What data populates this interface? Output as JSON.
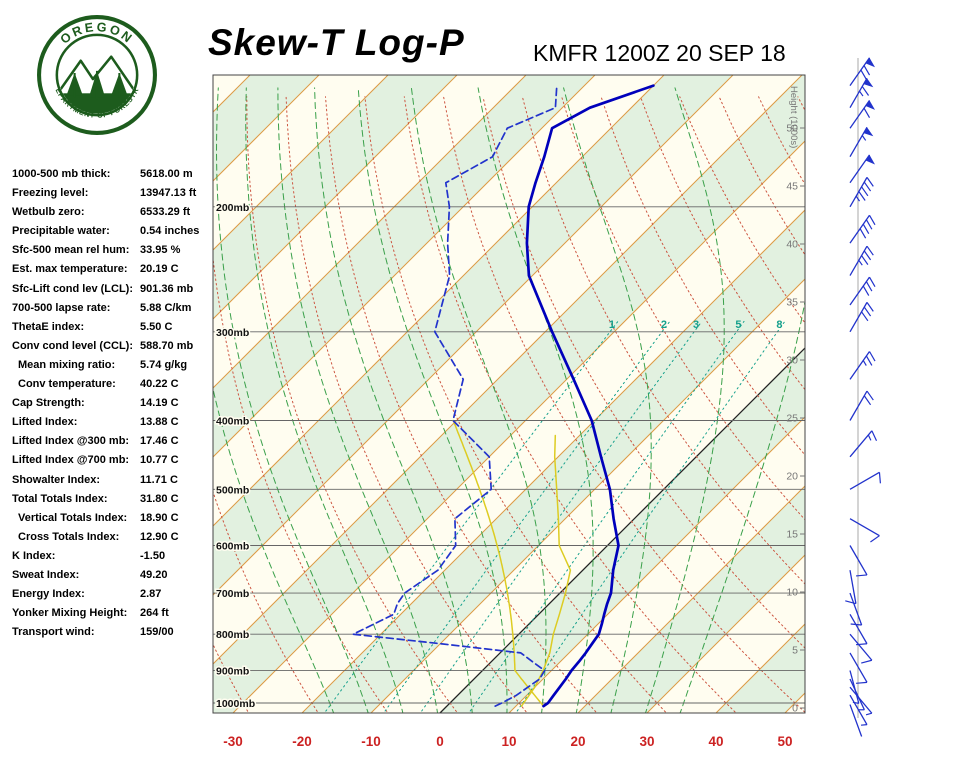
{
  "header": {
    "title": "Skew-T Log-P",
    "station": "KMFR 1200Z 20 SEP 18"
  },
  "logo": {
    "top_text": "OREGON",
    "bottom_text": "DEPARTMENT OF FORESTRY"
  },
  "indices": [
    {
      "label": "1000-500 mb thick:",
      "value": "5618.00 m"
    },
    {
      "label": "Freezing level:",
      "value": "13947.13 ft"
    },
    {
      "label": "Wetbulb zero:",
      "value": "6533.29 ft"
    },
    {
      "label": "Precipitable water:",
      "value": "0.54 inches"
    },
    {
      "label": "Sfc-500 mean rel hum:",
      "value": "33.95 %"
    },
    {
      "label": "Est. max temperature:",
      "value": "20.19 C"
    },
    {
      "label": "Sfc-Lift cond lev (LCL):",
      "value": "901.36 mb"
    },
    {
      "label": "700-500 lapse rate:",
      "value": "5.88 C/km"
    },
    {
      "label": "ThetaE index:",
      "value": "5.50 C"
    },
    {
      "label": "Conv cond level (CCL):",
      "value": "588.70 mb"
    },
    {
      "label": "Mean mixing ratio:",
      "value": "5.74 g/kg",
      "indent": true
    },
    {
      "label": "Conv temperature:",
      "value": "40.22 C",
      "indent": true
    },
    {
      "label": "Cap Strength:",
      "value": "14.19 C"
    },
    {
      "label": "Lifted Index:",
      "value": "13.88 C"
    },
    {
      "label": "Lifted Index @300 mb:",
      "value": "17.46 C"
    },
    {
      "label": "Lifted Index @700 mb:",
      "value": "10.77 C"
    },
    {
      "label": "Showalter Index:",
      "value": "11.71 C"
    },
    {
      "label": "Total Totals Index:",
      "value": "31.80 C"
    },
    {
      "label": "Vertical Totals Index:",
      "value": "18.90 C",
      "indent": true
    },
    {
      "label": "Cross Totals Index:",
      "value": "12.90 C",
      "indent": true
    },
    {
      "label": "K Index:",
      "value": "-1.50"
    },
    {
      "label": "Sweat Index:",
      "value": "49.20"
    },
    {
      "label": "Energy Index:",
      "value": "2.87"
    },
    {
      "label": "Yonker Mixing Height:",
      "value": "264 ft"
    },
    {
      "label": "Transport wind:",
      "value": "159/00"
    }
  ],
  "colors": {
    "band_green": "#e2f1e0",
    "band_cream": "#fffdf0",
    "isotherm": "#dd9a44",
    "zero_isotherm": "#222222",
    "isobar": "#666666",
    "dry_adiabat": "#cc5540",
    "moist_adiabat": "#3aa04a",
    "mixing_ratio": "#15a08c",
    "temperature_trace": "#0000bb",
    "dewpoint_trace": "#2233cc",
    "wetbulb_trace": "#ddcc22",
    "wind_barb": "#2233cc",
    "axis_red": "#cc2222",
    "height_label": "#777777",
    "logo_green": "#1d5c1d"
  },
  "chart_data": {
    "type": "line",
    "variant": "skew-t-log-p",
    "title": "Skew-T Log-P",
    "station": "KMFR 1200Z 20 SEP 18",
    "temp_axis": {
      "ticks_c": [
        -30,
        -20,
        -10,
        0,
        10,
        20,
        30,
        40,
        50
      ],
      "unit": "C"
    },
    "pressure_axis": {
      "ticks_mb": [
        200,
        300,
        400,
        500,
        600,
        700,
        800,
        900,
        1000
      ],
      "unit": "mb",
      "range_mb": [
        131,
        1033
      ]
    },
    "height_axis": {
      "title": "Height (1000s)",
      "ticks_kft": [
        50,
        45,
        40,
        35,
        30,
        25,
        20,
        15,
        10,
        5,
        0
      ]
    },
    "mixing_ratio_lines_gkg": [
      1,
      2,
      3,
      5,
      8
    ],
    "isotherms_c": {
      "from": -120,
      "to": 60,
      "step": 10,
      "highlight_black_c": 0
    },
    "dry_adiabats_c": {
      "from": -30,
      "to": 150,
      "step": 10
    },
    "moist_adiabats_c": [
      -15,
      -10,
      -5,
      0,
      5,
      10,
      15,
      20,
      25,
      30,
      35
    ],
    "sounding": {
      "pressure_mb": [
        1010,
        1000,
        975,
        950,
        925,
        900,
        875,
        850,
        825,
        800,
        775,
        750,
        725,
        700,
        650,
        600,
        550,
        500,
        450,
        400,
        350,
        300,
        250,
        225,
        200,
        185,
        170,
        155,
        145,
        135
      ],
      "temperature_c": [
        14.0,
        14.2,
        13.9,
        13.6,
        13.3,
        12.9,
        12.7,
        12.4,
        12.0,
        11.6,
        10.6,
        9.5,
        8.4,
        7.4,
        4.4,
        1.6,
        -3.0,
        -7.8,
        -13.8,
        -20.4,
        -29.0,
        -39.0,
        -50.5,
        -55.5,
        -60.5,
        -63.0,
        -65.5,
        -68.5,
        -66.0,
        -60.0
      ],
      "dewpoint_c": [
        7.0,
        7.5,
        8.5,
        9.0,
        9.5,
        9.0,
        6.0,
        3.0,
        -10.0,
        -24.0,
        -22.5,
        -21.0,
        -22.0,
        -22.5,
        -21.0,
        -22.0,
        -26.0,
        -25.0,
        -30.0,
        -40.5,
        -45.0,
        -56.0,
        -62.0,
        -67.0,
        -72.0,
        -76.0,
        -73.0,
        -75.0,
        -71.0,
        -74.0
      ]
    },
    "wet_bulb": {
      "pressure_mb": [
        1010,
        950,
        900,
        850,
        800,
        750,
        700,
        650,
        600,
        550,
        500,
        450,
        420
      ],
      "temperature_c": [
        10.8,
        10.0,
        8.8,
        7.2,
        5.0,
        3.0,
        0.8,
        -1.8,
        -7.0,
        -11.0,
        -15.5,
        -20.5,
        -23.5
      ]
    },
    "parcel": {
      "surface_pressure_mb": 1010,
      "surface_temp_c": 14.0,
      "lcl_mb": 901.36,
      "top_mb": 400
    },
    "winds": [
      {
        "pressure_mb": 1005,
        "dir_deg": 160,
        "speed_kt": 2
      },
      {
        "pressure_mb": 975,
        "dir_deg": 150,
        "speed_kt": 3
      },
      {
        "pressure_mb": 950,
        "dir_deg": 140,
        "speed_kt": 5
      },
      {
        "pressure_mb": 925,
        "dir_deg": 155,
        "speed_kt": 5
      },
      {
        "pressure_mb": 900,
        "dir_deg": 165,
        "speed_kt": 5
      },
      {
        "pressure_mb": 850,
        "dir_deg": 150,
        "speed_kt": 8
      },
      {
        "pressure_mb": 800,
        "dir_deg": 140,
        "speed_kt": 10
      },
      {
        "pressure_mb": 750,
        "dir_deg": 150,
        "speed_kt": 10
      },
      {
        "pressure_mb": 700,
        "dir_deg": 160,
        "speed_kt": 12
      },
      {
        "pressure_mb": 650,
        "dir_deg": 170,
        "speed_kt": 10
      },
      {
        "pressure_mb": 600,
        "dir_deg": 150,
        "speed_kt": 8
      },
      {
        "pressure_mb": 550,
        "dir_deg": 120,
        "speed_kt": 10
      },
      {
        "pressure_mb": 500,
        "dir_deg": 60,
        "speed_kt": 12
      },
      {
        "pressure_mb": 450,
        "dir_deg": 40,
        "speed_kt": 15
      },
      {
        "pressure_mb": 400,
        "dir_deg": 30,
        "speed_kt": 20
      },
      {
        "pressure_mb": 350,
        "dir_deg": 35,
        "speed_kt": 25
      },
      {
        "pressure_mb": 300,
        "dir_deg": 30,
        "speed_kt": 30
      },
      {
        "pressure_mb": 275,
        "dir_deg": 35,
        "speed_kt": 30
      },
      {
        "pressure_mb": 250,
        "dir_deg": 30,
        "speed_kt": 35
      },
      {
        "pressure_mb": 225,
        "dir_deg": 35,
        "speed_kt": 40
      },
      {
        "pressure_mb": 200,
        "dir_deg": 30,
        "speed_kt": 45
      },
      {
        "pressure_mb": 185,
        "dir_deg": 35,
        "speed_kt": 50
      },
      {
        "pressure_mb": 170,
        "dir_deg": 30,
        "speed_kt": 55
      },
      {
        "pressure_mb": 155,
        "dir_deg": 35,
        "speed_kt": 60
      },
      {
        "pressure_mb": 145,
        "dir_deg": 30,
        "speed_kt": 65
      },
      {
        "pressure_mb": 135,
        "dir_deg": 35,
        "speed_kt": 70
      }
    ]
  }
}
